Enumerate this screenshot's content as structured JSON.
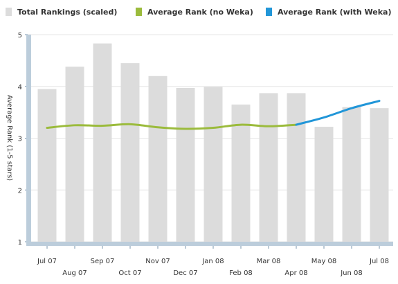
{
  "chart_data": {
    "type": "bar",
    "title": "",
    "xlabel": "",
    "ylabel": "Average Rank (1-5 stars)",
    "ylim": [
      1,
      5
    ],
    "yticks": [
      "1",
      "2",
      "3",
      "4",
      "5"
    ],
    "grid": true,
    "legend_position": "top",
    "categories": [
      "Jul 07",
      "Aug 07",
      "Sep 07",
      "Oct 07",
      "Nov 07",
      "Dec 07",
      "Jan 08",
      "Feb 08",
      "Mar 08",
      "Apr 08",
      "May 08",
      "Jun 08",
      "Jul 08"
    ],
    "series": [
      {
        "name": "Total Rankings (scaled)",
        "kind": "bar",
        "color": "#dcdcdc",
        "values": [
          3.95,
          4.38,
          4.83,
          4.45,
          4.2,
          3.97,
          3.99,
          3.65,
          3.87,
          3.87,
          3.22,
          3.6,
          3.58
        ]
      },
      {
        "name": "Average Rank (no Weka)",
        "kind": "line",
        "color": "#9bbb3c",
        "values": [
          3.2,
          3.25,
          3.24,
          3.27,
          3.21,
          3.18,
          3.2,
          3.26,
          3.23,
          3.26,
          null,
          null,
          null
        ]
      },
      {
        "name": "Average Rank (with Weka)",
        "kind": "line",
        "color": "#2196d8",
        "values": [
          null,
          null,
          null,
          null,
          null,
          null,
          null,
          null,
          null,
          3.26,
          3.4,
          3.58,
          3.72
        ]
      }
    ]
  }
}
